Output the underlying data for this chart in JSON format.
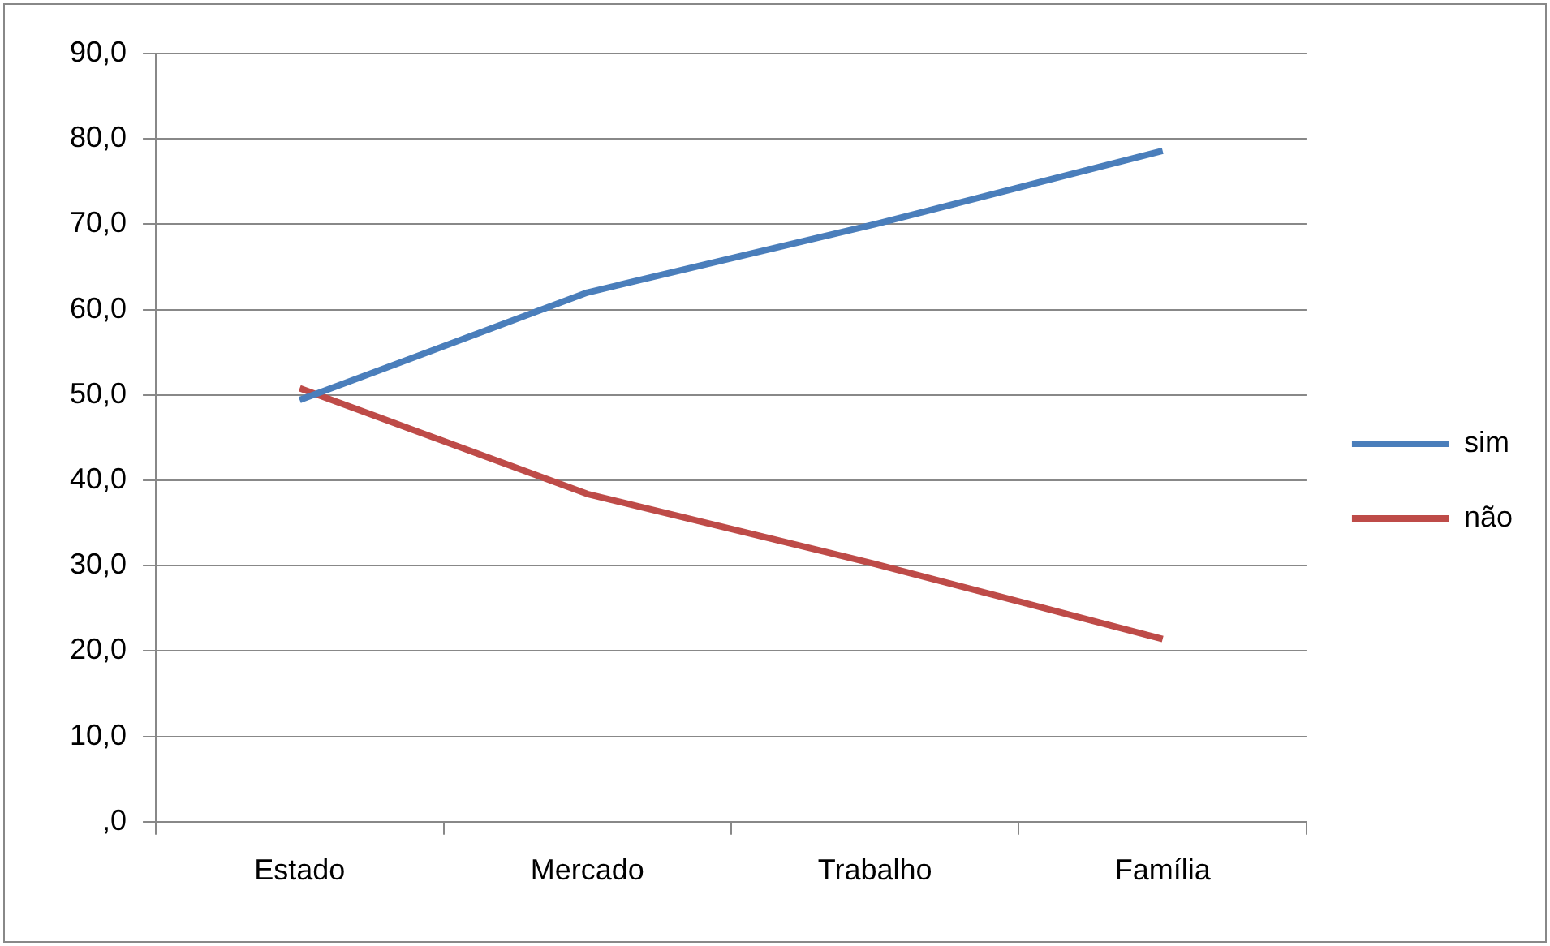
{
  "chart_data": {
    "type": "line",
    "categories": [
      "Estado",
      "Mercado",
      "Trabalho",
      "Família"
    ],
    "series": [
      {
        "name": "sim",
        "color": "#4a7ebb",
        "values": [
          49.4,
          62.0,
          70.0,
          78.6
        ]
      },
      {
        "name": "não",
        "color": "#be4b48",
        "values": [
          50.8,
          38.4,
          30.2,
          21.4
        ]
      }
    ],
    "ylim": [
      0,
      90
    ],
    "yticks": [
      {
        "value": 0,
        "label": ",0"
      },
      {
        "value": 10,
        "label": "10,0"
      },
      {
        "value": 20,
        "label": "20,0"
      },
      {
        "value": 30,
        "label": "30,0"
      },
      {
        "value": 40,
        "label": "40,0"
      },
      {
        "value": 50,
        "label": "50,0"
      },
      {
        "value": 60,
        "label": "60,0"
      },
      {
        "value": 70,
        "label": "70,0"
      },
      {
        "value": 80,
        "label": "80,0"
      },
      {
        "value": 90,
        "label": "90,0"
      }
    ],
    "grid": "y",
    "legend": "right",
    "marker": "none",
    "line_style": "solid"
  }
}
